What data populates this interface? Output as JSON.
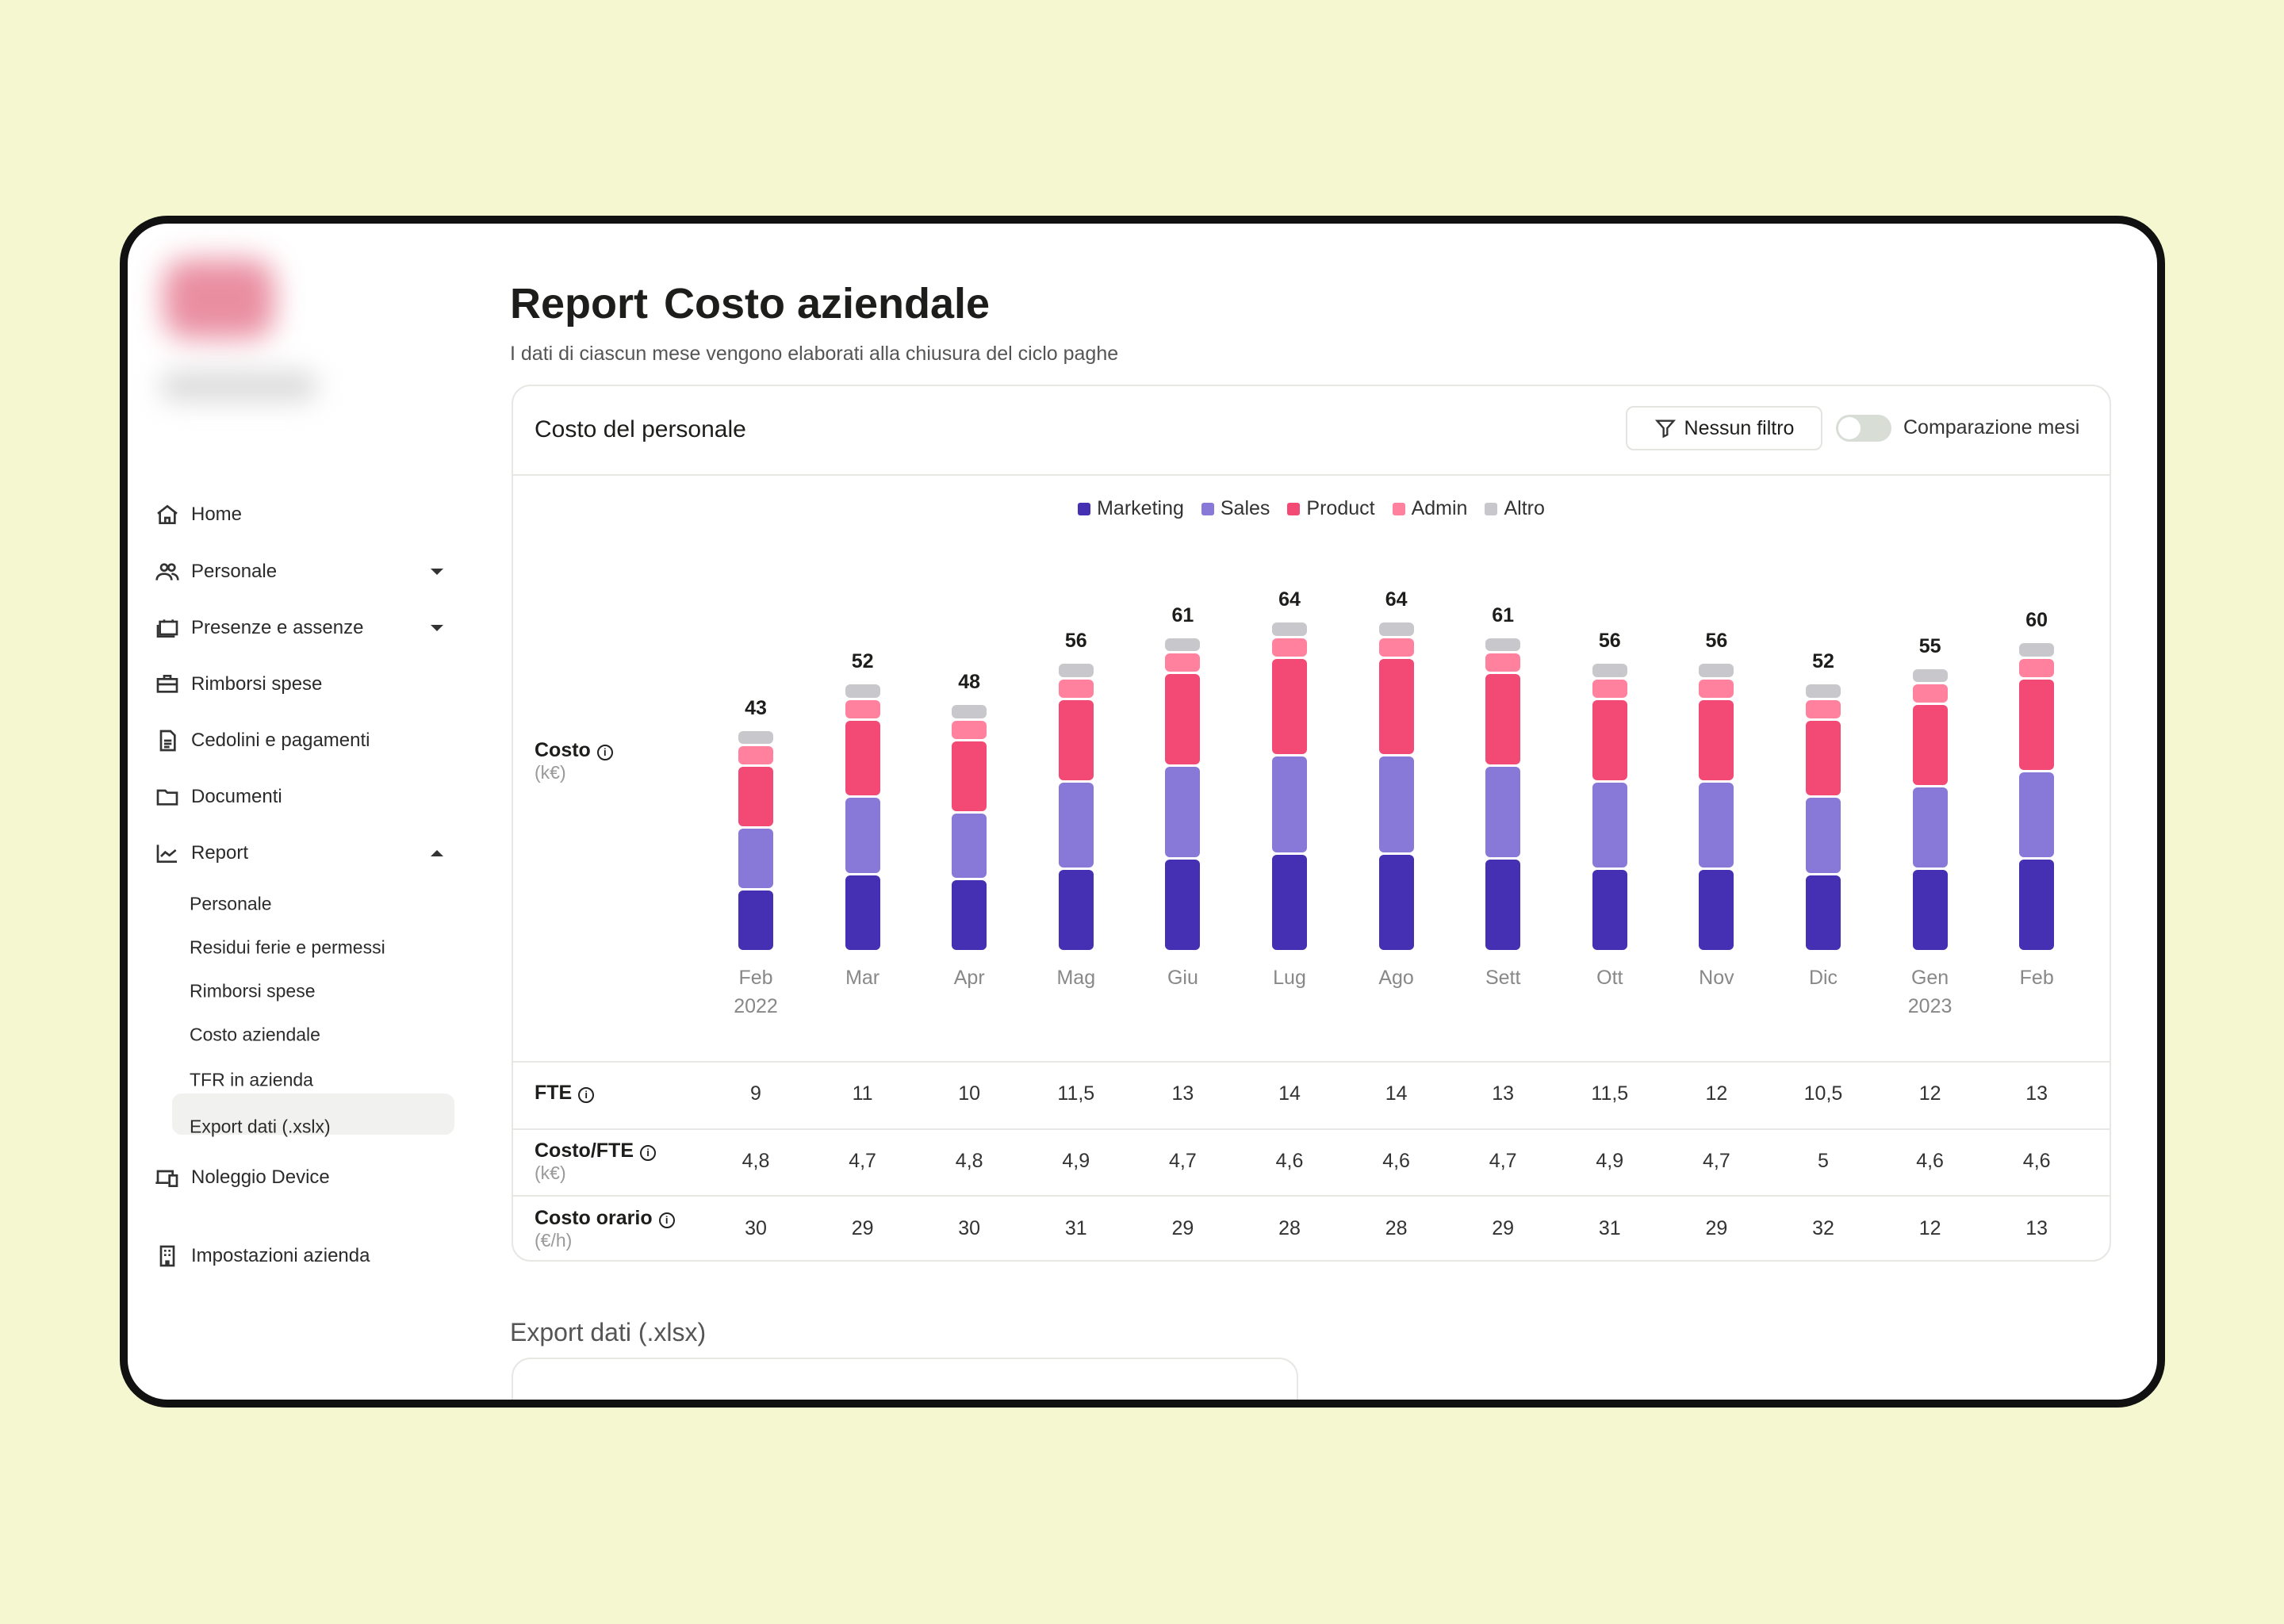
{
  "colors": {
    "Marketing": "#4530b3",
    "Sales": "#8878d8",
    "Product": "#f24a74",
    "Admin": "#ff819e",
    "Altro": "#c8c8cc"
  },
  "sidebar": {
    "items": [
      {
        "label": "Home",
        "icon": "home-icon"
      },
      {
        "label": "Personale",
        "icon": "people-icon"
      },
      {
        "label": "Presenze e assenze",
        "icon": "calendar-icon"
      },
      {
        "label": "Rimborsi spese",
        "icon": "briefcase-icon"
      },
      {
        "label": "Cedolini e pagamenti",
        "icon": "document-icon"
      },
      {
        "label": "Documenti",
        "icon": "folder-icon"
      },
      {
        "label": "Report",
        "icon": "chart-icon"
      },
      {
        "label": "Noleggio Device",
        "icon": "devices-icon"
      },
      {
        "label": "Impostazioni azienda",
        "icon": "building-icon"
      }
    ],
    "report_sub": [
      "Personale",
      "Residui ferie e permessi",
      "Rimborsi spese",
      "Costo aziendale",
      "TFR in azienda",
      "Export dati (.xslx)"
    ]
  },
  "header": {
    "title_bold": "Report",
    "title": "Costo aziendale",
    "subtitle": "I dati di ciascun mese vengono elaborati alla chiusura del ciclo paghe"
  },
  "card": {
    "title": "Costo del personale",
    "filter_label": "Nessun filtro",
    "toggle_label": "Comparazione mesi",
    "toggle_on": false
  },
  "chart_data": {
    "type": "bar",
    "stacked": true,
    "title": "Costo del personale",
    "ylabel": "Costo",
    "yunit": "(k€)",
    "legend": [
      "Marketing",
      "Sales",
      "Product",
      "Admin",
      "Altro"
    ],
    "legend_position": "top-center",
    "categories": [
      "Feb",
      "Mar",
      "Apr",
      "Mag",
      "Giu",
      "Lug",
      "Ago",
      "Sett",
      "Ott",
      "Nov",
      "Dic",
      "Gen",
      "Feb"
    ],
    "years": [
      "2022",
      "",
      "",
      "",
      "",
      "",
      "",
      "",
      "",
      "",
      "",
      "2023",
      ""
    ],
    "totals": [
      43,
      52,
      48,
      56,
      61,
      64,
      64,
      61,
      56,
      56,
      52,
      55,
      60
    ],
    "series": [
      {
        "name": "Marketing",
        "values": [
          12,
          15,
          14,
          16,
          18,
          19,
          19,
          18,
          16,
          16,
          15,
          16,
          18
        ]
      },
      {
        "name": "Sales",
        "values": [
          12,
          15,
          13,
          17,
          18,
          19,
          19,
          18,
          17,
          17,
          15,
          16,
          17
        ]
      },
      {
        "name": "Product",
        "values": [
          12,
          15,
          14,
          16,
          18,
          19,
          19,
          18,
          16,
          16,
          15,
          16,
          18
        ]
      },
      {
        "name": "Admin",
        "values": [
          4,
          4,
          4,
          4,
          4,
          4,
          4,
          4,
          4,
          4,
          4,
          4,
          4
        ]
      },
      {
        "name": "Altro",
        "values": [
          3,
          3,
          3,
          3,
          3,
          3,
          3,
          3,
          3,
          3,
          3,
          3,
          3
        ]
      }
    ],
    "ylim": [
      0,
      64
    ]
  },
  "table": [
    {
      "label": "FTE",
      "unit": "",
      "values": [
        "9",
        "11",
        "10",
        "11,5",
        "13",
        "14",
        "14",
        "13",
        "11,5",
        "12",
        "10,5",
        "12",
        "13"
      ]
    },
    {
      "label": "Costo/FTE",
      "unit": "(k€)",
      "values": [
        "4,8",
        "4,7",
        "4,8",
        "4,9",
        "4,7",
        "4,6",
        "4,6",
        "4,7",
        "4,9",
        "4,7",
        "5",
        "4,6",
        "4,6"
      ]
    },
    {
      "label": "Costo orario",
      "unit": "(€/h)",
      "values": [
        "30",
        "29",
        "30",
        "31",
        "29",
        "28",
        "28",
        "29",
        "31",
        "29",
        "32",
        "12",
        "13"
      ]
    }
  ],
  "export": {
    "title": "Export dati (.xlsx)"
  }
}
